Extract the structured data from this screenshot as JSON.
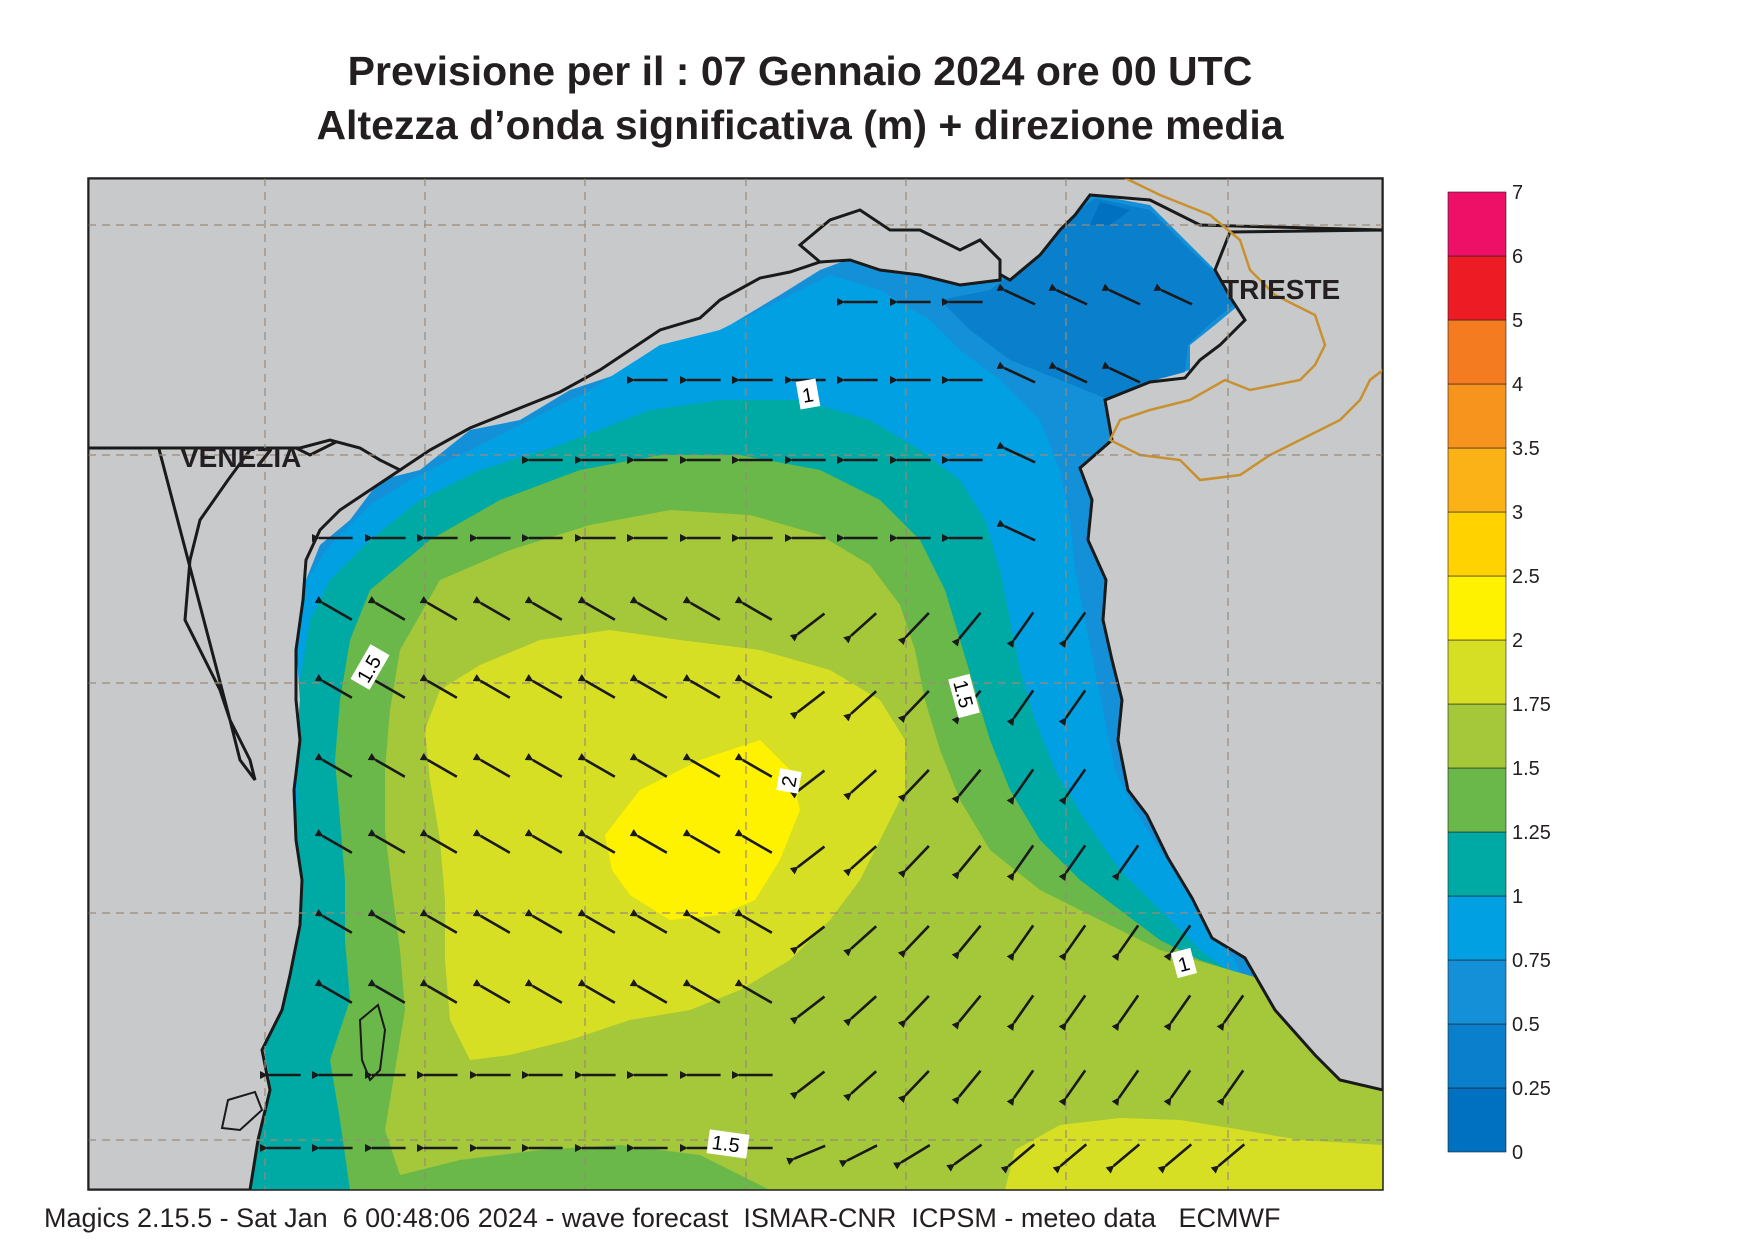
{
  "title": {
    "line1": "Previsione per il  :  07  Gennaio  2024   ore 00 UTC",
    "line2": "Altezza d’onda significativa (m) + direzione media"
  },
  "footer": "Magics 2.15.5 - Sat Jan  6 00:48:06 2024 - wave forecast  ISMAR-CNR  ICPSM - meteo data   ECMWF",
  "places": [
    {
      "name": "VENEZIA"
    },
    {
      "name": "TRIESTE"
    }
  ],
  "contour_labels": [
    "1",
    "1.5",
    "1.5",
    "2",
    "1",
    "1.5"
  ],
  "legend": {
    "ticks": [
      "0",
      "0.25",
      "0.5",
      "0.75",
      "1",
      "1.25",
      "1.5",
      "1.75",
      "2",
      "2.5",
      "3",
      "3.5",
      "4",
      "5",
      "6",
      "7"
    ],
    "colors": [
      "#0070c0",
      "#0a7fcc",
      "#1390d8",
      "#00a0e2",
      "#00aaa4",
      "#6ab84a",
      "#a4c83a",
      "#d7df24",
      "#fff200",
      "#ffd200",
      "#fbb216",
      "#f7941d",
      "#f47b20",
      "#ed1c24",
      "#ee1066"
    ]
  },
  "colors": {
    "land": "#c8c9cb",
    "coast": "#1a1a1a",
    "border": "#c8902e",
    "arrow": "#1a1a1a"
  }
}
